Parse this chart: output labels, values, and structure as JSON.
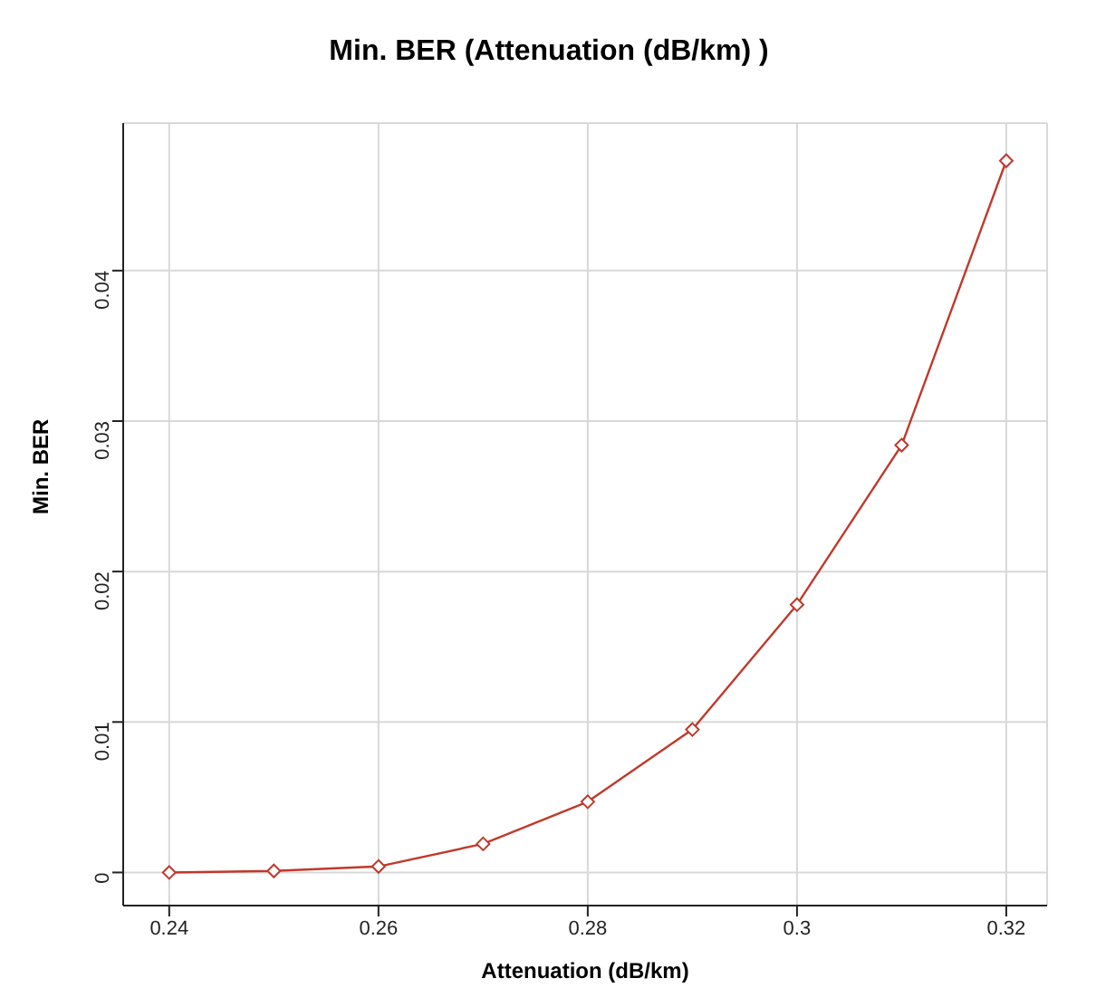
{
  "chart_data": {
    "type": "line",
    "title": "Min. BER (Attenuation (dB/km) )",
    "xlabel": "Attenuation (dB/km)",
    "ylabel": "Min. BER",
    "x": [
      0.24,
      0.25,
      0.26,
      0.27,
      0.28,
      0.29,
      0.3,
      0.31,
      0.32
    ],
    "series": [
      {
        "color": "#c0392b",
        "values": [
          0,
          0.0001,
          0.0004,
          0.0019,
          0.0047,
          0.0095,
          0.0178,
          0.0284,
          0.0473
        ]
      }
    ],
    "xlim": [
      0.2356,
      0.3239
    ],
    "xticks": [
      0.24,
      0.26,
      0.28,
      {
        "value": 0.3,
        "label": "0.3"
      },
      0.32
    ],
    "ylim": [
      -0.0022,
      0.0498
    ],
    "yticks": [
      0,
      0.01,
      0.02,
      0.03,
      0.04
    ],
    "grid": true,
    "marker": "diamond",
    "line_style": "solid"
  }
}
